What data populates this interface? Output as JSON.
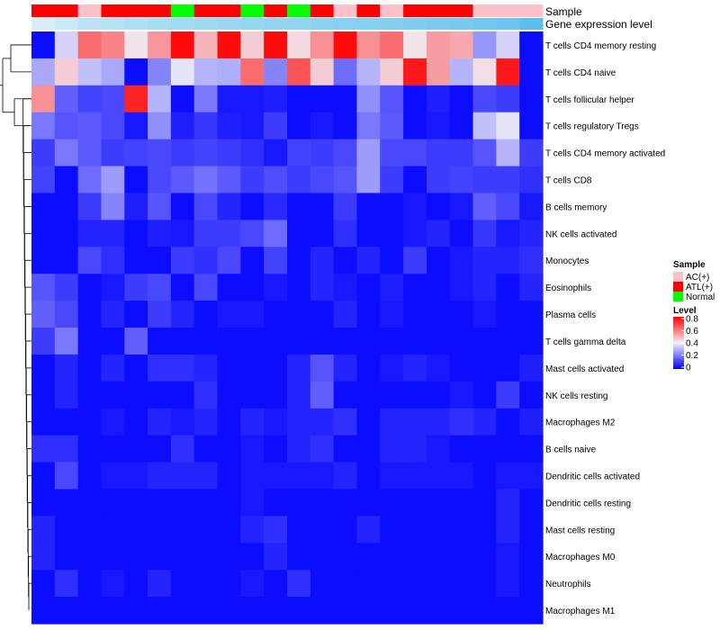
{
  "chart_data": {
    "type": "heatmap",
    "title": "",
    "annotation_tracks": [
      {
        "name": "Sample",
        "kind": "categorical",
        "values": [
          "ATL(+)",
          "ATL(+)",
          "AC(+)",
          "ATL(+)",
          "ATL(+)",
          "ATL(+)",
          "Normal",
          "ATL(+)",
          "ATL(+)",
          "Normal",
          "ATL(+)",
          "Normal",
          "ATL(+)",
          "AC(+)",
          "ATL(+)",
          "AC(+)",
          "ATL(+)",
          "ATL(+)",
          "ATL(+)",
          "AC(+)",
          "AC(+)",
          "AC(+)"
        ]
      },
      {
        "name": "Gene expression level",
        "kind": "gradient",
        "values": [
          0.1,
          0.2,
          0.3,
          0.35,
          0.4,
          0.45,
          0.5,
          0.52,
          0.55,
          0.58,
          0.6,
          0.62,
          0.65,
          0.68,
          0.7,
          0.72,
          0.75,
          0.78,
          0.8,
          0.85,
          0.9,
          1.0
        ]
      }
    ],
    "rows": [
      "T cells CD4 memory resting",
      "T cells CD4 naive",
      "T cells follicular helper",
      "T cells regulatory  Tregs",
      "T cells CD4 memory activated",
      "T cells CD8",
      "B cells memory",
      "NK cells activated",
      "Monocytes",
      "Eosinophils",
      "Plasma cells",
      "T cells gamma delta",
      "Mast cells activated",
      "NK cells resting",
      "Macrophages M2",
      "B cells naive",
      "Dendritic cells activated",
      "Dendritic cells resting",
      "Mast cells resting",
      "Macrophages M0",
      "Neutrophils",
      "Macrophages M1"
    ],
    "values": [
      [
        0.02,
        0.35,
        0.62,
        0.58,
        0.42,
        0.55,
        0.78,
        0.5,
        0.78,
        0.46,
        0.78,
        0.44,
        0.56,
        0.78,
        0.56,
        0.62,
        0.42,
        0.54,
        0.52,
        0.25,
        0.35,
        0.02
      ],
      [
        0.28,
        0.46,
        0.32,
        0.28,
        0.02,
        0.22,
        0.38,
        0.3,
        0.29,
        0.62,
        0.22,
        0.66,
        0.46,
        0.18,
        0.3,
        0.46,
        0.76,
        0.54,
        0.3,
        0.43,
        0.76,
        0.02
      ],
      [
        0.56,
        0.16,
        0.11,
        0.12,
        0.74,
        0.3,
        0.02,
        0.2,
        0.04,
        0.04,
        0.05,
        0.02,
        0.02,
        0.02,
        0.24,
        0.14,
        0.02,
        0.05,
        0.02,
        0.12,
        0.1,
        0.02
      ],
      [
        0.2,
        0.14,
        0.15,
        0.12,
        0.04,
        0.24,
        0.05,
        0.09,
        0.05,
        0.04,
        0.1,
        0.02,
        0.04,
        0.02,
        0.2,
        0.15,
        0.02,
        0.04,
        0.02,
        0.32,
        0.38,
        0.02
      ],
      [
        0.1,
        0.2,
        0.15,
        0.1,
        0.11,
        0.12,
        0.1,
        0.11,
        0.1,
        0.08,
        0.04,
        0.11,
        0.1,
        0.12,
        0.26,
        0.12,
        0.12,
        0.1,
        0.1,
        0.14,
        0.3,
        0.1
      ],
      [
        0.11,
        0.02,
        0.18,
        0.26,
        0.02,
        0.12,
        0.15,
        0.19,
        0.15,
        0.1,
        0.13,
        0.1,
        0.12,
        0.14,
        0.26,
        0.1,
        0.02,
        0.1,
        0.11,
        0.1,
        0.1,
        0.08
      ],
      [
        0.02,
        0.02,
        0.1,
        0.22,
        0.05,
        0.14,
        0.02,
        0.12,
        0.06,
        0.02,
        0.07,
        0.02,
        0.02,
        0.1,
        0.02,
        0.02,
        0.04,
        0.02,
        0.04,
        0.16,
        0.12,
        0.04
      ],
      [
        0.02,
        0.02,
        0.06,
        0.06,
        0.02,
        0.05,
        0.04,
        0.1,
        0.1,
        0.12,
        0.18,
        0.02,
        0.02,
        0.08,
        0.02,
        0.02,
        0.04,
        0.06,
        0.02,
        0.09,
        0.04,
        0.06
      ],
      [
        0.02,
        0.02,
        0.12,
        0.08,
        0.02,
        0.02,
        0.1,
        0.08,
        0.12,
        0.02,
        0.11,
        0.02,
        0.06,
        0.02,
        0.06,
        0.02,
        0.1,
        0.02,
        0.04,
        0.06,
        0.06,
        0.08
      ],
      [
        0.14,
        0.1,
        0.02,
        0.04,
        0.1,
        0.12,
        0.02,
        0.12,
        0.02,
        0.02,
        0.04,
        0.02,
        0.06,
        0.04,
        0.02,
        0.05,
        0.02,
        0.02,
        0.04,
        0.06,
        0.02,
        0.06
      ],
      [
        0.16,
        0.12,
        0.02,
        0.06,
        0.02,
        0.1,
        0.06,
        0.02,
        0.04,
        0.04,
        0.02,
        0.02,
        0.02,
        0.06,
        0.02,
        0.04,
        0.02,
        0.02,
        0.02,
        0.04,
        0.02,
        0.02
      ],
      [
        0.1,
        0.2,
        0.02,
        0.02,
        0.16,
        0.02,
        0.02,
        0.02,
        0.02,
        0.02,
        0.02,
        0.02,
        0.02,
        0.02,
        0.02,
        0.02,
        0.02,
        0.02,
        0.02,
        0.02,
        0.02,
        0.02
      ],
      [
        0.02,
        0.06,
        0.02,
        0.06,
        0.02,
        0.08,
        0.08,
        0.06,
        0.02,
        0.02,
        0.02,
        0.06,
        0.14,
        0.06,
        0.02,
        0.04,
        0.06,
        0.04,
        0.02,
        0.02,
        0.02,
        0.05
      ],
      [
        0.02,
        0.06,
        0.02,
        0.02,
        0.02,
        0.02,
        0.02,
        0.08,
        0.02,
        0.02,
        0.02,
        0.06,
        0.16,
        0.02,
        0.02,
        0.02,
        0.02,
        0.02,
        0.04,
        0.02,
        0.1,
        0.02
      ],
      [
        0.02,
        0.02,
        0.02,
        0.04,
        0.02,
        0.06,
        0.04,
        0.06,
        0.02,
        0.06,
        0.04,
        0.06,
        0.06,
        0.08,
        0.02,
        0.06,
        0.06,
        0.06,
        0.08,
        0.06,
        0.02,
        0.05
      ],
      [
        0.08,
        0.08,
        0.02,
        0.02,
        0.02,
        0.02,
        0.08,
        0.02,
        0.02,
        0.04,
        0.02,
        0.06,
        0.08,
        0.02,
        0.02,
        0.06,
        0.06,
        0.04,
        0.02,
        0.02,
        0.02,
        0.02
      ],
      [
        0.02,
        0.12,
        0.02,
        0.04,
        0.04,
        0.06,
        0.06,
        0.06,
        0.02,
        0.04,
        0.04,
        0.04,
        0.04,
        0.06,
        0.02,
        0.04,
        0.04,
        0.04,
        0.04,
        0.02,
        0.04,
        0.04
      ],
      [
        0.02,
        0.02,
        0.02,
        0.02,
        0.02,
        0.02,
        0.02,
        0.02,
        0.02,
        0.04,
        0.02,
        0.02,
        0.02,
        0.02,
        0.02,
        0.02,
        0.02,
        0.02,
        0.02,
        0.02,
        0.06,
        0.02
      ],
      [
        0.06,
        0.02,
        0.02,
        0.02,
        0.02,
        0.02,
        0.02,
        0.02,
        0.02,
        0.06,
        0.08,
        0.02,
        0.02,
        0.02,
        0.06,
        0.02,
        0.02,
        0.02,
        0.02,
        0.02,
        0.06,
        0.02
      ],
      [
        0.06,
        0.02,
        0.02,
        0.02,
        0.02,
        0.02,
        0.02,
        0.02,
        0.02,
        0.02,
        0.06,
        0.02,
        0.02,
        0.02,
        0.02,
        0.02,
        0.02,
        0.02,
        0.02,
        0.02,
        0.04,
        0.02
      ],
      [
        0.02,
        0.08,
        0.02,
        0.04,
        0.02,
        0.06,
        0.02,
        0.02,
        0.02,
        0.04,
        0.02,
        0.08,
        0.02,
        0.02,
        0.02,
        0.02,
        0.02,
        0.02,
        0.02,
        0.02,
        0.04,
        0.02
      ],
      [
        0.02,
        0.02,
        0.02,
        0.02,
        0.02,
        0.02,
        0.02,
        0.02,
        0.02,
        0.02,
        0.02,
        0.02,
        0.02,
        0.02,
        0.02,
        0.02,
        0.02,
        0.02,
        0.02,
        0.02,
        0.02,
        0.02
      ]
    ],
    "color_scale": {
      "min": 0,
      "max": 0.8,
      "low": "#0000ff",
      "mid": "#f2f0f8",
      "high": "#ff0000",
      "ticks": [
        "0.8",
        "0.6",
        "0.4",
        "0.2",
        "0"
      ]
    },
    "row_dendrogram": true
  },
  "legend": {
    "sample_title": "Sample",
    "sample_items": [
      {
        "label": "AC(+)",
        "color": "#ffc0cb"
      },
      {
        "label": "ATL(+)",
        "color": "#ff0000"
      },
      {
        "label": "Normal",
        "color": "#00ff00"
      }
    ],
    "level_title": "Level"
  },
  "track_colors": {
    "gene_low": "#e6f4fa",
    "gene_high": "#5bc0eb"
  }
}
